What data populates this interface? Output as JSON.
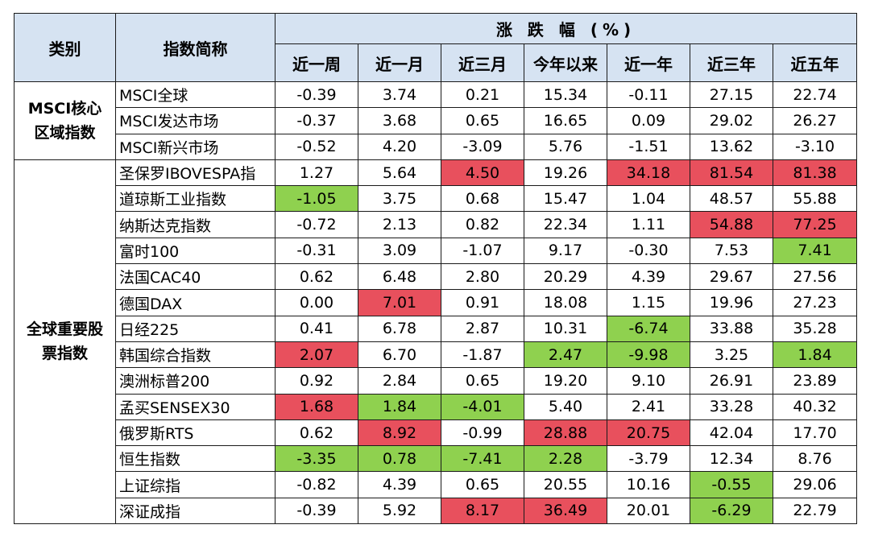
{
  "header": {
    "category": "类别",
    "name": "指数简称",
    "group": "涨 跌 幅 (%)",
    "periods": [
      "近一周",
      "近一月",
      "近三月",
      "今年以来",
      "近一年",
      "近三年",
      "近五年"
    ]
  },
  "colors": {
    "up_highlight": "#e8505d",
    "down_highlight": "#8fd14f",
    "header_bg": "#d6e3f2"
  },
  "categories": {
    "msci_line1": "MSCI核心",
    "msci_line2": "区域指数",
    "global_line1": "全球重要股",
    "global_line2": "票指数"
  },
  "rows": [
    {
      "name": "MSCI全球",
      "v": [
        "-0.39",
        "3.74",
        "0.21",
        "15.34",
        "-0.11",
        "27.15",
        "22.74"
      ],
      "h": [
        "",
        "",
        "",
        "",
        "",
        "",
        ""
      ]
    },
    {
      "name": "MSCI发达市场",
      "v": [
        "-0.37",
        "3.68",
        "0.65",
        "16.65",
        "0.09",
        "29.02",
        "26.27"
      ],
      "h": [
        "",
        "",
        "",
        "",
        "",
        "",
        ""
      ]
    },
    {
      "name": "MSCI新兴市场",
      "v": [
        "-0.52",
        "4.20",
        "-3.09",
        "5.76",
        "-1.51",
        "13.62",
        "-3.10"
      ],
      "h": [
        "",
        "",
        "",
        "",
        "",
        "",
        ""
      ]
    },
    {
      "name": "圣保罗IBOVESPA指",
      "v": [
        "1.27",
        "5.64",
        "4.50",
        "19.26",
        "34.18",
        "81.54",
        "81.38"
      ],
      "h": [
        "",
        "",
        "red",
        "",
        "red",
        "red",
        "red"
      ]
    },
    {
      "name": "道琼斯工业指数",
      "v": [
        "-1.05",
        "3.75",
        "0.68",
        "15.47",
        "1.04",
        "48.57",
        "55.88"
      ],
      "h": [
        "green",
        "",
        "",
        "",
        "",
        "",
        ""
      ]
    },
    {
      "name": "纳斯达克指数",
      "v": [
        "-0.72",
        "2.13",
        "0.82",
        "22.34",
        "1.11",
        "54.88",
        "77.25"
      ],
      "h": [
        "",
        "",
        "",
        "",
        "",
        "red",
        "red"
      ]
    },
    {
      "name": "富时100",
      "v": [
        "-0.31",
        "3.09",
        "-1.07",
        "9.17",
        "-0.30",
        "7.53",
        "7.41"
      ],
      "h": [
        "",
        "",
        "",
        "",
        "",
        "",
        "green"
      ]
    },
    {
      "name": "法国CAC40",
      "v": [
        "0.62",
        "6.48",
        "2.80",
        "20.29",
        "4.39",
        "29.67",
        "27.56"
      ],
      "h": [
        "",
        "",
        "",
        "",
        "",
        "",
        ""
      ]
    },
    {
      "name": "德国DAX",
      "v": [
        "0.00",
        "7.01",
        "0.91",
        "18.08",
        "1.15",
        "19.96",
        "27.23"
      ],
      "h": [
        "",
        "red",
        "",
        "",
        "",
        "",
        ""
      ]
    },
    {
      "name": "日经225",
      "v": [
        "0.41",
        "6.78",
        "2.87",
        "10.31",
        "-6.74",
        "33.88",
        "35.28"
      ],
      "h": [
        "",
        "",
        "",
        "",
        "green",
        "",
        ""
      ]
    },
    {
      "name": "韩国综合指数",
      "v": [
        "2.07",
        "6.70",
        "-1.87",
        "2.47",
        "-9.98",
        "3.25",
        "1.84"
      ],
      "h": [
        "red",
        "",
        "",
        "green",
        "green",
        "",
        "green"
      ]
    },
    {
      "name": "澳洲标普200",
      "v": [
        "0.92",
        "2.84",
        "0.65",
        "19.20",
        "9.10",
        "26.91",
        "23.89"
      ],
      "h": [
        "",
        "",
        "",
        "",
        "",
        "",
        ""
      ]
    },
    {
      "name": "孟买SENSEX30",
      "v": [
        "1.68",
        "1.84",
        "-4.01",
        "5.40",
        "2.41",
        "33.28",
        "40.32"
      ],
      "h": [
        "red",
        "green",
        "green",
        "",
        "",
        "",
        ""
      ]
    },
    {
      "name": "俄罗斯RTS",
      "v": [
        "0.62",
        "8.92",
        "-0.99",
        "28.88",
        "20.75",
        "42.04",
        "17.70"
      ],
      "h": [
        "",
        "red",
        "",
        "red",
        "red",
        "",
        ""
      ]
    },
    {
      "name": "恒生指数",
      "v": [
        "-3.35",
        "0.78",
        "-7.41",
        "2.28",
        "-3.79",
        "12.34",
        "8.76"
      ],
      "h": [
        "green",
        "green",
        "green",
        "green",
        "",
        "",
        ""
      ]
    },
    {
      "name": "上证综指",
      "v": [
        "-0.82",
        "4.39",
        "0.65",
        "20.55",
        "10.16",
        "-0.55",
        "29.06"
      ],
      "h": [
        "",
        "",
        "",
        "",
        "",
        "green",
        ""
      ]
    },
    {
      "name": "深证成指",
      "v": [
        "-0.39",
        "5.92",
        "8.17",
        "36.49",
        "20.01",
        "-6.29",
        "22.79"
      ],
      "h": [
        "",
        "",
        "red",
        "red",
        "",
        "green",
        ""
      ]
    }
  ]
}
